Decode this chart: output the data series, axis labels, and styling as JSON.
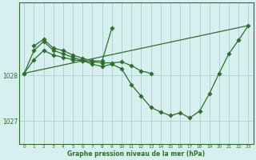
{
  "xlabel_label": "Graphe pression niveau de la mer (hPa)",
  "bg_color": "#d8efef",
  "grid_color": "#aacfcf",
  "line_color": "#2d6e2d",
  "marker_color": "#2d6e2d",
  "ylim": [
    1026.5,
    1029.6
  ],
  "yticks": [
    1027,
    1028
  ],
  "xticks": [
    0,
    1,
    2,
    3,
    4,
    5,
    6,
    7,
    8,
    9,
    10,
    11,
    12,
    13,
    14,
    15,
    16,
    17,
    18,
    19,
    20,
    21,
    22,
    23
  ],
  "series1_x": [
    0,
    1,
    2,
    3,
    4,
    5,
    6,
    7,
    8,
    9,
    10,
    11,
    12,
    13
  ],
  "series1_y": [
    1028.05,
    1028.35,
    1028.55,
    1028.45,
    1028.4,
    1028.35,
    1028.32,
    1028.3,
    1028.28,
    1028.28,
    1028.3,
    1028.22,
    1028.1,
    1028.05
  ],
  "series2_x": [
    1,
    2,
    3,
    4,
    5,
    6,
    7,
    8,
    9
  ],
  "series2_y": [
    1028.65,
    1028.8,
    1028.6,
    1028.55,
    1028.45,
    1028.38,
    1028.32,
    1028.32,
    1029.05
  ],
  "series3_x": [
    0,
    1,
    2,
    3,
    4,
    5,
    6,
    7,
    8,
    9,
    10,
    11,
    12,
    13,
    14,
    15,
    16,
    17,
    18,
    19,
    20,
    21,
    22,
    23
  ],
  "series3_y": [
    1028.05,
    1028.55,
    1028.75,
    1028.55,
    1028.48,
    1028.4,
    1028.33,
    1028.25,
    1028.2,
    1028.25,
    1028.15,
    1027.8,
    1027.55,
    1027.3,
    1027.2,
    1027.12,
    1027.18,
    1027.07,
    1027.22,
    1027.6,
    1028.05,
    1028.48,
    1028.78,
    1029.1
  ],
  "series4_x": [
    0,
    23
  ],
  "series4_y": [
    1028.05,
    1029.1
  ]
}
